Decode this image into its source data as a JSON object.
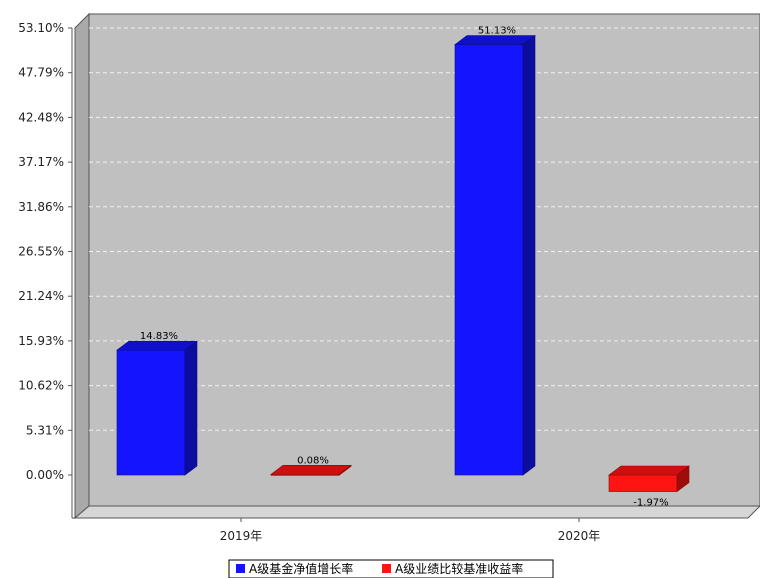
{
  "chart_data": {
    "type": "bar",
    "title": "",
    "xlabel": "",
    "ylabel": "",
    "categories": [
      "2019年",
      "2020年"
    ],
    "y_ticks": [
      "0.00%",
      "5.31%",
      "10.62%",
      "15.93%",
      "21.24%",
      "26.55%",
      "31.86%",
      "37.17%",
      "42.48%",
      "47.79%",
      "53.10%"
    ],
    "ylim": [
      0,
      53.1
    ],
    "grid": true,
    "legend_position": "bottom",
    "series": [
      {
        "name": "A级基金净值增长率",
        "color": "#1414ff",
        "values": [
          14.83,
          51.13
        ],
        "labels": [
          "14.83%",
          "51.13%"
        ]
      },
      {
        "name": "A级业绩比较基准收益率",
        "color": "#ff1414",
        "values": [
          0.08,
          -1.97
        ],
        "labels": [
          "0.08%",
          "-1.97%"
        ]
      }
    ]
  }
}
